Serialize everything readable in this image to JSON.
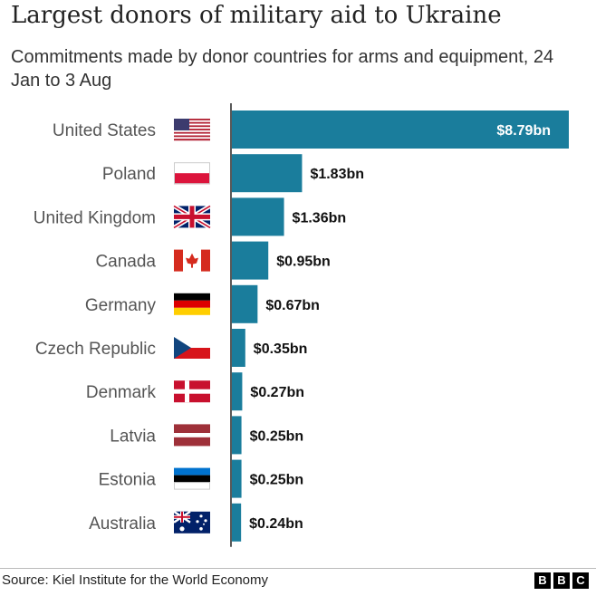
{
  "header": {
    "title": "Largest donors of military aid to Ukraine",
    "subtitle": "Commitments made by donor countries for arms and equipment, 24 Jan to 3 Aug"
  },
  "footer": {
    "source": "Source: Kiel Institute for the World Economy",
    "logo_letters": [
      "B",
      "B",
      "C"
    ]
  },
  "colors": {
    "bar": "#1a7d9c",
    "axis": "#222222",
    "inside_label": "#ffffff"
  },
  "chart_data": {
    "type": "bar",
    "orientation": "horizontal",
    "title": "Largest donors of military aid to Ukraine",
    "subtitle": "Commitments made by donor countries for arms and equipment, 24 Jan to 3 Aug",
    "categories": [
      "United States",
      "Poland",
      "United Kingdom",
      "Canada",
      "Germany",
      "Czech Republic",
      "Denmark",
      "Latvia",
      "Estonia",
      "Australia"
    ],
    "values": [
      8.79,
      1.83,
      1.36,
      0.95,
      0.67,
      0.35,
      0.27,
      0.25,
      0.25,
      0.24
    ],
    "labels": [
      "$8.79bn",
      "$1.83bn",
      "$1.36bn",
      "$0.95bn",
      "$0.67bn",
      "$0.35bn",
      "$0.27bn",
      "$0.25bn",
      "$0.25bn",
      "$0.24bn"
    ],
    "flags": [
      "us-flag-icon",
      "poland-flag-icon",
      "uk-flag-icon",
      "canada-flag-icon",
      "germany-flag-icon",
      "czech-flag-icon",
      "denmark-flag-icon",
      "latvia-flag-icon",
      "estonia-flag-icon",
      "australia-flag-icon"
    ],
    "unit": "$bn",
    "xlim": [
      0,
      8.79
    ],
    "grid": false,
    "legend": "none"
  }
}
